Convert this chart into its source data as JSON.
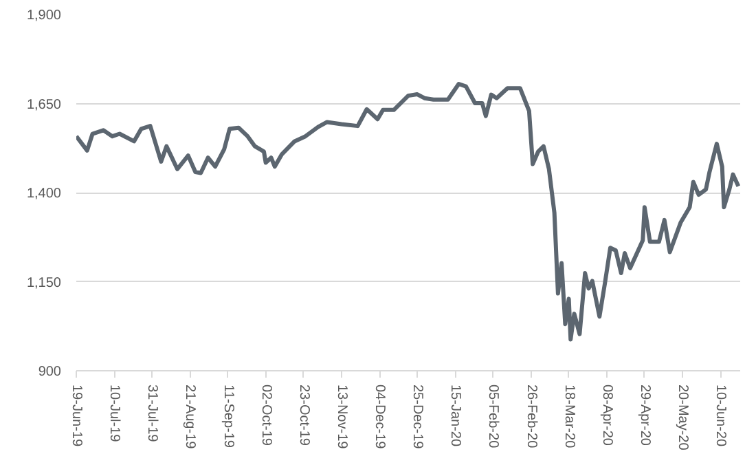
{
  "chart_data": {
    "type": "line",
    "series": [
      {
        "color": "#5c6670",
        "x": [
          "2019-06-19",
          "2019-06-25",
          "2019-06-28",
          "2019-07-04",
          "2019-07-09",
          "2019-07-13",
          "2019-07-21",
          "2019-07-25",
          "2019-07-30",
          "2019-08-05",
          "2019-08-08",
          "2019-08-14",
          "2019-08-20",
          "2019-08-24",
          "2019-08-27",
          "2019-08-31",
          "2019-09-04",
          "2019-09-09",
          "2019-09-12",
          "2019-09-17",
          "2019-09-22",
          "2019-09-26",
          "2019-10-01",
          "2019-10-02",
          "2019-10-05",
          "2019-10-07",
          "2019-10-11",
          "2019-10-18",
          "2019-10-24",
          "2019-10-31",
          "2019-11-05",
          "2019-11-13",
          "2019-11-22",
          "2019-11-27",
          "2019-12-03",
          "2019-12-06",
          "2019-12-12",
          "2019-12-20",
          "2019-12-25",
          "2019-12-29",
          "2020-01-03",
          "2020-01-11",
          "2020-01-17",
          "2020-01-21",
          "2020-01-26",
          "2020-01-30",
          "2020-02-01",
          "2020-02-04",
          "2020-02-07",
          "2020-02-13",
          "2020-02-20",
          "2020-02-25",
          "2020-02-27",
          "2020-03-01",
          "2020-03-04",
          "2020-03-07",
          "2020-03-10",
          "2020-03-12",
          "2020-03-14",
          "2020-03-16",
          "2020-03-18",
          "2020-03-19",
          "2020-03-21",
          "2020-03-24",
          "2020-03-27",
          "2020-03-29",
          "2020-03-31",
          "2020-04-04",
          "2020-04-07",
          "2020-04-10",
          "2020-04-13",
          "2020-04-16",
          "2020-04-18",
          "2020-04-21",
          "2020-04-28",
          "2020-04-29",
          "2020-05-02",
          "2020-05-07",
          "2020-05-10",
          "2020-05-13",
          "2020-05-19",
          "2020-05-24",
          "2020-05-26",
          "2020-05-29",
          "2020-06-02",
          "2020-06-04",
          "2020-06-08",
          "2020-06-11",
          "2020-06-12",
          "2020-06-15",
          "2020-06-17",
          "2020-06-20"
        ],
        "values": [
          1558,
          1518,
          1565,
          1575,
          1558,
          1565,
          1544,
          1579,
          1587,
          1487,
          1530,
          1466,
          1504,
          1458,
          1455,
          1498,
          1473,
          1522,
          1579,
          1582,
          1558,
          1530,
          1515,
          1484,
          1498,
          1473,
          1508,
          1544,
          1558,
          1584,
          1598,
          1592,
          1587,
          1634,
          1606,
          1632,
          1632,
          1672,
          1676,
          1665,
          1661,
          1661,
          1705,
          1698,
          1651,
          1651,
          1615,
          1675,
          1665,
          1693,
          1693,
          1629,
          1480,
          1515,
          1530,
          1466,
          1344,
          1117,
          1202,
          1031,
          1102,
          988,
          1060,
          1003,
          1174,
          1131,
          1152,
          1052,
          1145,
          1245,
          1238,
          1174,
          1230,
          1188,
          1266,
          1359,
          1262,
          1262,
          1323,
          1233,
          1316,
          1359,
          1430,
          1394,
          1409,
          1458,
          1537,
          1473,
          1359,
          1409,
          1451,
          1418
        ]
      }
    ],
    "xlim": [
      "2019-06-19",
      "2020-06-21"
    ],
    "xticks": [
      {
        "value": "2019-06-19",
        "label": "19-Jun-19"
      },
      {
        "value": "2019-07-10",
        "label": "10-Jul-19"
      },
      {
        "value": "2019-07-31",
        "label": "31-Jul-19"
      },
      {
        "value": "2019-08-21",
        "label": "21-Aug-19"
      },
      {
        "value": "2019-09-11",
        "label": "11-Sep-19"
      },
      {
        "value": "2019-10-02",
        "label": "02-Oct-19"
      },
      {
        "value": "2019-10-23",
        "label": "23-Oct-19"
      },
      {
        "value": "2019-11-13",
        "label": "13-Nov-19"
      },
      {
        "value": "2019-12-04",
        "label": "04-Dec-19"
      },
      {
        "value": "2019-12-25",
        "label": "25-Dec-19"
      },
      {
        "value": "2020-01-15",
        "label": "15-Jan-20"
      },
      {
        "value": "2020-02-05",
        "label": "05-Feb-20"
      },
      {
        "value": "2020-02-26",
        "label": "26-Feb-20"
      },
      {
        "value": "2020-03-18",
        "label": "18-Mar-20"
      },
      {
        "value": "2020-04-08",
        "label": "08-Apr-20"
      },
      {
        "value": "2020-04-29",
        "label": "29-Apr-20"
      },
      {
        "value": "2020-05-20",
        "label": "20-May-20"
      },
      {
        "value": "2020-06-10",
        "label": "10-Jun-20"
      }
    ],
    "ylim": [
      900,
      1900
    ],
    "yticks": [
      {
        "value": 900,
        "label": "900"
      },
      {
        "value": 1150,
        "label": "1,150"
      },
      {
        "value": 1400,
        "label": "1,400"
      },
      {
        "value": 1650,
        "label": "1,650"
      },
      {
        "value": 1900,
        "label": "1,900"
      }
    ],
    "grid": "y",
    "marker": "none",
    "line_style": "solid"
  }
}
